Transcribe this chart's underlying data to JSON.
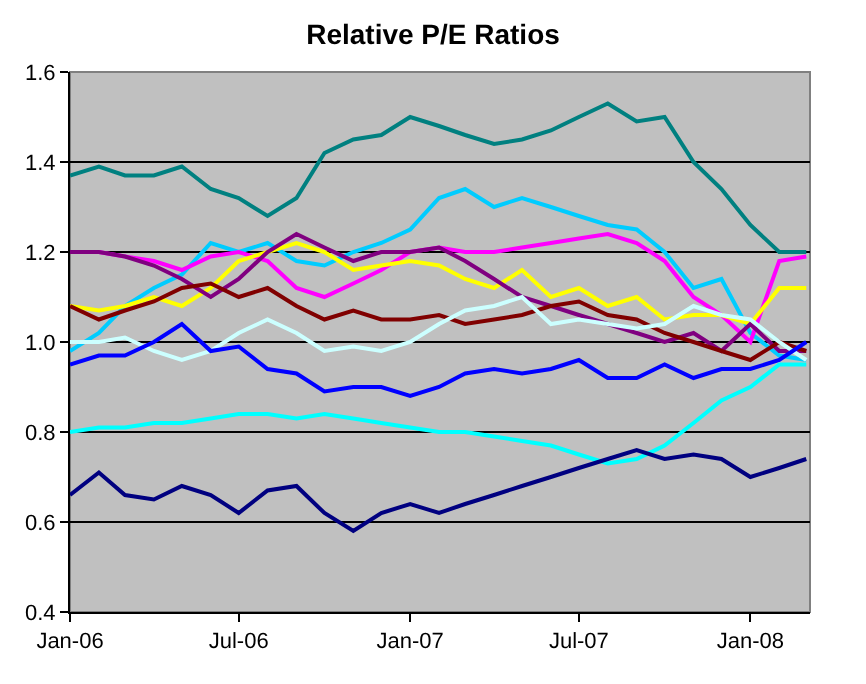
{
  "chart_data": {
    "type": "line",
    "title": "Relative P/E Ratios",
    "x": [
      "2006-01",
      "2006-02",
      "2006-03",
      "2006-04",
      "2006-05",
      "2006-06",
      "2006-07",
      "2006-08",
      "2006-09",
      "2006-10",
      "2006-11",
      "2006-12",
      "2007-01",
      "2007-02",
      "2007-03",
      "2007-04",
      "2007-05",
      "2007-06",
      "2007-07",
      "2007-08",
      "2007-09",
      "2007-10",
      "2007-11",
      "2007-12",
      "2008-01",
      "2008-02",
      "2008-03"
    ],
    "series": [
      {
        "color": "#008080",
        "values": [
          1.37,
          1.39,
          1.37,
          1.37,
          1.39,
          1.34,
          1.32,
          1.28,
          1.32,
          1.42,
          1.45,
          1.46,
          1.5,
          1.48,
          1.46,
          1.44,
          1.45,
          1.47,
          1.5,
          1.53,
          1.49,
          1.5,
          1.4,
          1.34,
          1.26,
          1.2,
          1.2
        ]
      },
      {
        "color": "#00ccff",
        "values": [
          0.98,
          1.02,
          1.08,
          1.12,
          1.15,
          1.22,
          1.2,
          1.22,
          1.18,
          1.17,
          1.2,
          1.22,
          1.25,
          1.32,
          1.34,
          1.3,
          1.32,
          1.3,
          1.28,
          1.26,
          1.25,
          1.2,
          1.12,
          1.14,
          1.02,
          0.97,
          0.96
        ]
      },
      {
        "color": "#ff00ff",
        "values": [
          1.2,
          1.2,
          1.19,
          1.18,
          1.16,
          1.19,
          1.2,
          1.18,
          1.12,
          1.1,
          1.13,
          1.16,
          1.2,
          1.21,
          1.2,
          1.2,
          1.21,
          1.22,
          1.23,
          1.24,
          1.22,
          1.18,
          1.1,
          1.06,
          1.0,
          1.18,
          1.19
        ]
      },
      {
        "color": "#ffff00",
        "values": [
          1.08,
          1.07,
          1.08,
          1.1,
          1.08,
          1.12,
          1.18,
          1.2,
          1.22,
          1.2,
          1.16,
          1.17,
          1.18,
          1.17,
          1.14,
          1.12,
          1.16,
          1.1,
          1.12,
          1.08,
          1.1,
          1.05,
          1.06,
          1.06,
          1.04,
          1.12,
          1.12
        ]
      },
      {
        "color": "#800080",
        "values": [
          1.2,
          1.2,
          1.19,
          1.17,
          1.14,
          1.1,
          1.14,
          1.2,
          1.24,
          1.21,
          1.18,
          1.2,
          1.2,
          1.21,
          1.18,
          1.14,
          1.1,
          1.08,
          1.06,
          1.04,
          1.02,
          1.0,
          1.02,
          0.98,
          1.04,
          0.98,
          0.98
        ]
      },
      {
        "color": "#800000",
        "values": [
          1.08,
          1.05,
          1.07,
          1.09,
          1.12,
          1.13,
          1.1,
          1.12,
          1.08,
          1.05,
          1.07,
          1.05,
          1.05,
          1.06,
          1.04,
          1.05,
          1.06,
          1.08,
          1.09,
          1.06,
          1.05,
          1.02,
          1.0,
          0.98,
          0.96,
          1.0,
          0.98
        ]
      },
      {
        "color": "#ccffff",
        "values": [
          1.0,
          1.0,
          1.01,
          0.98,
          0.96,
          0.98,
          1.02,
          1.05,
          1.02,
          0.98,
          0.99,
          0.98,
          1.0,
          1.04,
          1.07,
          1.08,
          1.1,
          1.04,
          1.05,
          1.04,
          1.03,
          1.04,
          1.08,
          1.06,
          1.05,
          1.0,
          0.96
        ]
      },
      {
        "color": "#0000ff",
        "values": [
          0.95,
          0.97,
          0.97,
          1.0,
          1.04,
          0.98,
          0.99,
          0.94,
          0.93,
          0.89,
          0.9,
          0.9,
          0.88,
          0.9,
          0.93,
          0.94,
          0.93,
          0.94,
          0.96,
          0.92,
          0.92,
          0.95,
          0.92,
          0.94,
          0.94,
          0.96,
          1.0
        ]
      },
      {
        "color": "#00ffff",
        "values": [
          0.8,
          0.81,
          0.81,
          0.82,
          0.82,
          0.83,
          0.84,
          0.84,
          0.83,
          0.84,
          0.83,
          0.82,
          0.81,
          0.8,
          0.8,
          0.79,
          0.78,
          0.77,
          0.75,
          0.73,
          0.74,
          0.77,
          0.82,
          0.87,
          0.9,
          0.95,
          0.95
        ]
      },
      {
        "color": "#000080",
        "values": [
          0.66,
          0.71,
          0.66,
          0.65,
          0.68,
          0.66,
          0.62,
          0.67,
          0.68,
          0.62,
          0.58,
          0.62,
          0.64,
          0.62,
          0.64,
          0.66,
          0.68,
          0.7,
          0.72,
          0.74,
          0.76,
          0.74,
          0.75,
          0.74,
          0.7,
          0.72,
          0.74
        ]
      }
    ],
    "xlim": [
      "2006-01",
      "2008-03-05"
    ],
    "xticks": [
      {
        "value": "2006-01",
        "label": "Jan-06"
      },
      {
        "value": "2006-07",
        "label": "Jul-06"
      },
      {
        "value": "2007-01",
        "label": "Jan-07"
      },
      {
        "value": "2007-07",
        "label": "Jul-07"
      },
      {
        "value": "2008-01",
        "label": "Jan-08"
      }
    ],
    "ylim": [
      0.4,
      1.6
    ],
    "yticks": [
      0.4,
      0.6,
      0.8,
      {
        "value": 1.0,
        "label": "1.0"
      },
      1.2,
      1.4,
      1.6
    ],
    "grid": "y",
    "marker": "none",
    "line_style": "solid"
  }
}
